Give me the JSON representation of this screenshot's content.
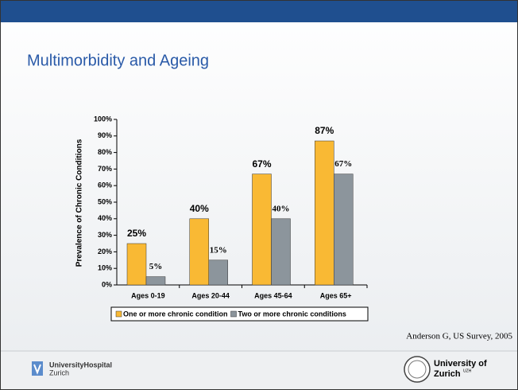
{
  "chart_data": {
    "type": "bar",
    "title": "Multimorbidity and Ageing",
    "y_label": "Prevalence of Chronic Conditions",
    "categories": [
      "Ages 0-19",
      "Ages 20-44",
      "Ages 45-64",
      "Ages 65+"
    ],
    "series": [
      {
        "name": "One or more chronic condition",
        "color": "#f9b934",
        "values": [
          25,
          40,
          67,
          87
        ],
        "value_labels": [
          "25%",
          "40%",
          "67%",
          "87%"
        ]
      },
      {
        "name": "Two or more chronic conditions",
        "color": "#8c959c",
        "values": [
          5,
          15,
          40,
          67
        ],
        "value_labels": [
          "5%",
          "15%",
          "40%",
          "67%"
        ]
      }
    ],
    "ylim": [
      0,
      100
    ],
    "yticks": [
      {
        "value": 0,
        "label": "0%"
      },
      {
        "value": 10,
        "label": "10%"
      },
      {
        "value": 20,
        "label": "20%"
      },
      {
        "value": 30,
        "label": "30%"
      },
      {
        "value": 40,
        "label": "40%"
      },
      {
        "value": 50,
        "label": "50%"
      },
      {
        "value": 60,
        "label": "60%"
      },
      {
        "value": 70,
        "label": "70%"
      },
      {
        "value": 80,
        "label": "80%"
      },
      {
        "value": 90,
        "label": "90%"
      },
      {
        "value": 100,
        "label": "100%"
      }
    ],
    "legend": "bottom",
    "source": "Anderson G, US Survey, 2005"
  },
  "footer": {
    "left": [
      "UniversityHospital",
      "Zurich"
    ],
    "right": [
      "University of",
      "Zurich",
      "UZH"
    ]
  }
}
